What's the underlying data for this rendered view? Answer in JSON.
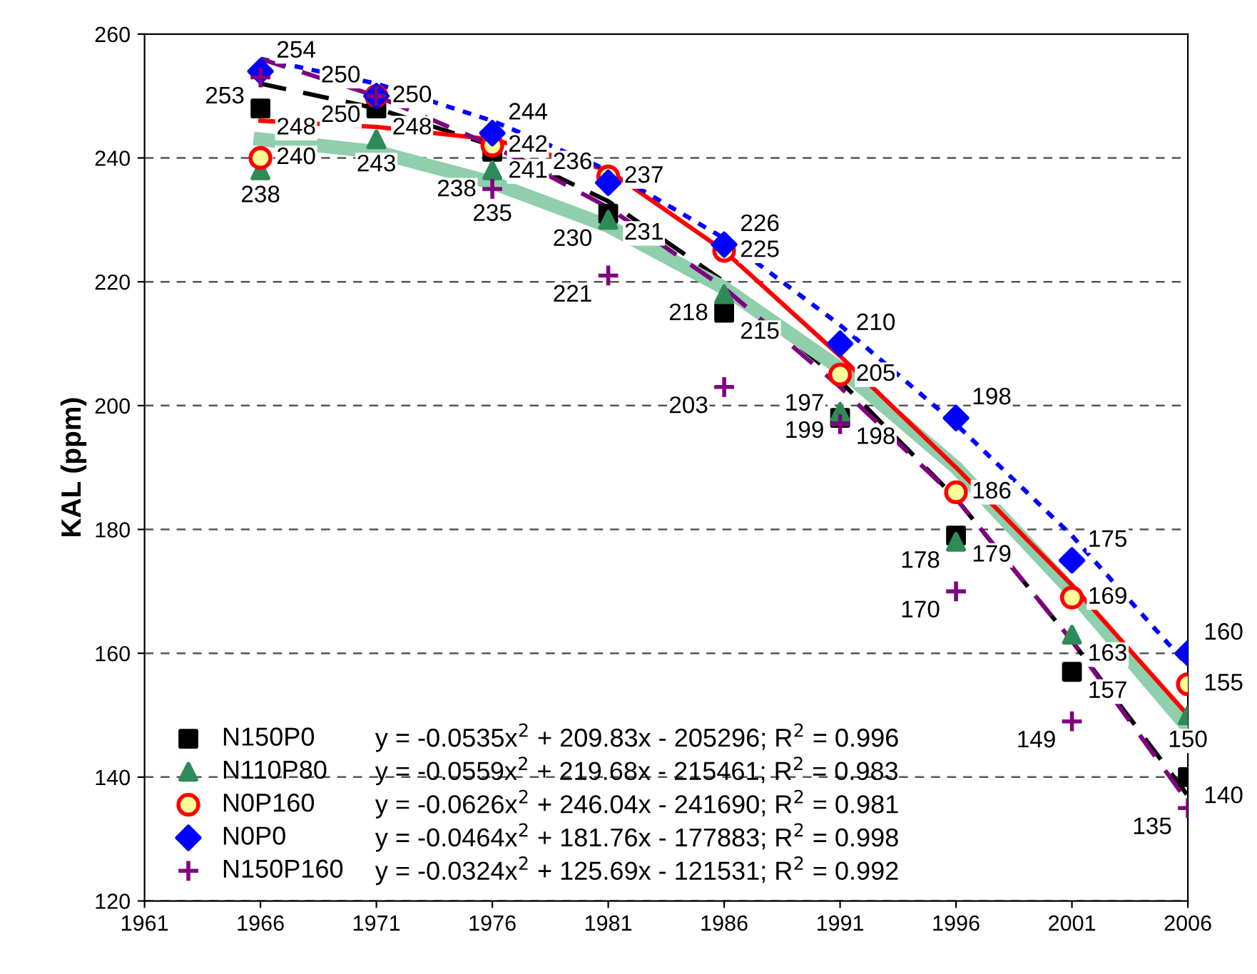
{
  "chart_data": {
    "type": "scatter",
    "ylabel": "KAL (ppm)",
    "x": [
      1966,
      1971,
      1976,
      1981,
      1986,
      1991,
      1996,
      2001,
      2006
    ],
    "xlim": [
      1961,
      2006
    ],
    "xticks": [
      1961,
      1966,
      1971,
      1976,
      1981,
      1986,
      1991,
      1996,
      2001,
      2006
    ],
    "ylim": [
      120,
      260
    ],
    "yticks": [
      120,
      140,
      160,
      180,
      200,
      220,
      240,
      260
    ],
    "grid": "y",
    "legend": "bottom left",
    "series": [
      {
        "name": "N150P0",
        "color": "#000000",
        "marker": "square",
        "values": [
          248,
          248,
          241,
          231,
          215,
          198,
          179,
          157,
          140
        ],
        "value_labels": [
          "248",
          "248",
          "241",
          "231",
          "215",
          "198",
          "179",
          "157",
          "140"
        ]
      },
      {
        "name": "N110P80",
        "color": "#2e8b57",
        "marker": "triangle",
        "values": [
          238,
          243,
          238,
          230,
          218,
          199,
          178,
          163,
          150
        ],
        "value_labels": [
          "238",
          "243",
          "238",
          "230",
          "218",
          "199",
          "178",
          "163",
          "150"
        ]
      },
      {
        "name": "N0P160",
        "color": "#ff0000",
        "marker": "circle",
        "values": [
          240,
          250,
          242,
          237,
          225,
          205,
          186,
          169,
          155
        ],
        "value_labels": [
          "240",
          "250",
          "242",
          "237",
          "225",
          "205",
          "186",
          "169",
          "155"
        ]
      },
      {
        "name": "N0P0",
        "color": "#0000ff",
        "marker": "diamond",
        "values": [
          254,
          250,
          244,
          236,
          226,
          210,
          198,
          175,
          160
        ],
        "value_labels": [
          "254",
          "250",
          "244",
          "236",
          "226",
          "210",
          "198",
          "175",
          "160"
        ]
      },
      {
        "name": "N150P160",
        "color": "#800080",
        "marker": "cross",
        "values": [
          253,
          250,
          235,
          221,
          203,
          197,
          170,
          149,
          135
        ],
        "value_labels": [
          "253",
          "250",
          "235",
          "221",
          "203",
          "197",
          "170",
          "149",
          "135"
        ]
      },
      {
        "type": "line",
        "color": "#000000",
        "line_style": "dashed",
        "marker": "none",
        "x": [
          1966,
          1971,
          1976,
          1981,
          1986,
          1991,
          1996,
          2001,
          2006
        ],
        "values": [
          252,
          248,
          242,
          233,
          220,
          204,
          185,
          162,
          137
        ]
      },
      {
        "type": "line",
        "color": "#8fcfac",
        "line_style": "solid",
        "marker": "none",
        "x": [
          1966,
          1971,
          1976,
          1981,
          1986,
          1991,
          1996,
          2001,
          2006
        ],
        "values": [
          243,
          241,
          236,
          229,
          219,
          206,
          190,
          170,
          148
        ]
      },
      {
        "type": "line",
        "color": "#ff0000",
        "line_style": "solid",
        "marker": "none",
        "x": [
          1966,
          1971,
          1976,
          1981,
          1986,
          1991,
          1996,
          2001,
          2006
        ],
        "values": [
          246,
          245,
          243,
          238,
          225,
          208,
          190,
          171,
          150
        ]
      },
      {
        "type": "line",
        "color": "#0000ff",
        "line_style": "dotted",
        "marker": "none",
        "x": [
          1966,
          1971,
          1976,
          1981,
          1986,
          1991,
          1996,
          2001,
          2006
        ],
        "values": [
          256,
          252,
          246,
          238,
          227,
          213,
          197,
          179,
          158
        ]
      },
      {
        "type": "line",
        "color": "#800080",
        "line_style": "dashed",
        "marker": "none",
        "x": [
          1966,
          1971,
          1976,
          1981,
          1986,
          1991,
          1996,
          2001,
          2006
        ],
        "values": [
          256,
          250,
          242,
          232,
          219,
          203,
          185,
          162,
          136
        ]
      }
    ],
    "annotations": [
      "y = -0.0535x$^{2}$ + 209.83x - 205296; R$^{2}$ = 0.996",
      "y = -0.0559x$^{2}$ + 219.68x - 215461; R$^{2}$ = 0.983",
      "y = -0.0626x$^{2}$ + 246.04x - 241690; R$^{2}$ = 0.981",
      "y = -0.0464x$^{2}$ + 181.76x - 177883; R$^{2}$ = 0.998",
      "y = -0.0324x$^{2}$ + 125.69x - 121531; R$^{2}$ = 0.992"
    ]
  }
}
